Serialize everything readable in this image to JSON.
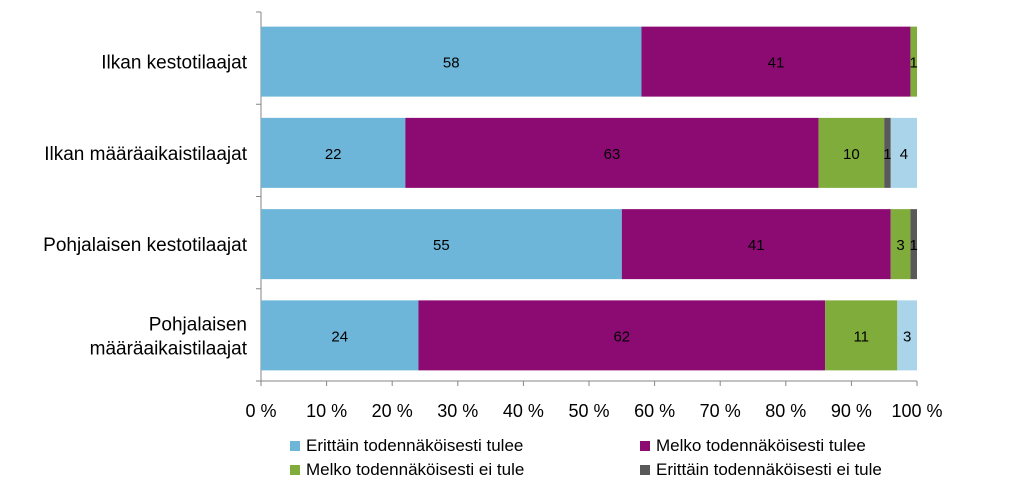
{
  "chart_data": {
    "type": "bar",
    "orientation": "horizontal",
    "stacked": "percent",
    "categories": [
      [
        "Ilkan kestotilaajat"
      ],
      [
        "Ilkan määräaikaistilaajat"
      ],
      [
        "Pohjalaisen kestotilaajat"
      ],
      [
        "Pohjalaisen",
        "määräaikaistilaajat"
      ]
    ],
    "series": [
      {
        "name": "Erittäin todennäköisesti tulee",
        "color": "#6db6d9",
        "values": [
          58,
          22,
          55,
          24
        ],
        "labels": [
          "58",
          "22",
          "55",
          "24"
        ]
      },
      {
        "name": "Melko todennäköisesti tulee",
        "color": "#8b0b72",
        "values": [
          41,
          63,
          41,
          62
        ],
        "labels": [
          "41",
          "63",
          "41",
          "62"
        ]
      },
      {
        "name": "Melko todennäköisesti ei tule",
        "color": "#7fac3b",
        "values": [
          1,
          10,
          3,
          11
        ],
        "labels": [
          "1",
          "10",
          "3",
          "11"
        ]
      },
      {
        "name": "Erittäin todennäköisesti ei tule",
        "color": "#595959",
        "values": [
          0,
          1,
          1,
          0
        ],
        "labels": [
          "",
          "1",
          "1",
          ""
        ]
      },
      {
        "name": "",
        "color": "#a9d4ea",
        "values": [
          0,
          4,
          0,
          3
        ],
        "labels": [
          "",
          "4",
          "",
          "3"
        ]
      }
    ],
    "x_ticks": [
      "0 %",
      "10 %",
      "20 %",
      "30 %",
      "40 %",
      "50 %",
      "60 %",
      "70 %",
      "80 %",
      "90 %",
      "100 %"
    ],
    "xlim": [
      0,
      100
    ],
    "grid": false,
    "legend_position": "bottom"
  }
}
